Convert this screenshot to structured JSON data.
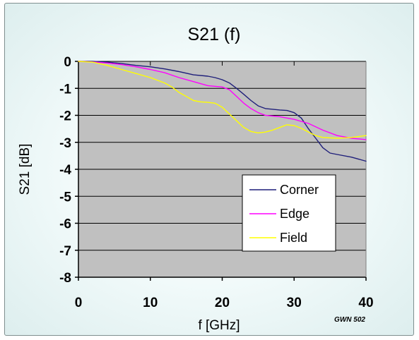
{
  "chart_data": {
    "type": "line",
    "title": "S21 (f)",
    "xlabel": "f [GHz]",
    "ylabel": "S21 [dB]",
    "xlim": [
      0,
      40
    ],
    "ylim": [
      -8,
      0
    ],
    "x_ticks": [
      "0",
      "10",
      "20",
      "30",
      "40"
    ],
    "y_ticks": [
      "0",
      "-1",
      "-2",
      "-3",
      "-4",
      "-5",
      "-6",
      "-7",
      "-8"
    ],
    "grid": "horizontal",
    "legend": "bottom-right",
    "background": "#c0c0c0",
    "series": [
      {
        "name": "Corner",
        "color": "#1f1f7a",
        "points": [
          [
            0,
            0
          ],
          [
            2,
            0
          ],
          [
            4,
            -0.03
          ],
          [
            6,
            -0.08
          ],
          [
            8,
            -0.15
          ],
          [
            10,
            -0.2
          ],
          [
            12,
            -0.28
          ],
          [
            14,
            -0.38
          ],
          [
            16,
            -0.5
          ],
          [
            18,
            -0.55
          ],
          [
            19,
            -0.6
          ],
          [
            20,
            -0.68
          ],
          [
            21,
            -0.8
          ],
          [
            22,
            -1.0
          ],
          [
            23,
            -1.22
          ],
          [
            24,
            -1.45
          ],
          [
            25,
            -1.65
          ],
          [
            26,
            -1.75
          ],
          [
            28,
            -1.8
          ],
          [
            29,
            -1.82
          ],
          [
            30,
            -1.9
          ],
          [
            31,
            -2.1
          ],
          [
            32,
            -2.5
          ],
          [
            33,
            -2.85
          ],
          [
            34,
            -3.2
          ],
          [
            35,
            -3.4
          ],
          [
            36,
            -3.45
          ],
          [
            38,
            -3.55
          ],
          [
            40,
            -3.7
          ]
        ]
      },
      {
        "name": "Edge",
        "color": "#ff00ff",
        "points": [
          [
            0,
            0
          ],
          [
            2,
            -0.02
          ],
          [
            4,
            -0.06
          ],
          [
            6,
            -0.12
          ],
          [
            8,
            -0.2
          ],
          [
            10,
            -0.3
          ],
          [
            12,
            -0.42
          ],
          [
            14,
            -0.6
          ],
          [
            16,
            -0.75
          ],
          [
            18,
            -0.9
          ],
          [
            20,
            -0.95
          ],
          [
            21,
            -1.05
          ],
          [
            22,
            -1.3
          ],
          [
            23,
            -1.55
          ],
          [
            24,
            -1.75
          ],
          [
            25,
            -1.9
          ],
          [
            26,
            -2.0
          ],
          [
            28,
            -2.05
          ],
          [
            30,
            -2.15
          ],
          [
            32,
            -2.3
          ],
          [
            34,
            -2.55
          ],
          [
            36,
            -2.75
          ],
          [
            38,
            -2.85
          ],
          [
            40,
            -2.9
          ]
        ]
      },
      {
        "name": "Field",
        "color": "#ffff00",
        "points": [
          [
            0,
            0
          ],
          [
            2,
            -0.03
          ],
          [
            4,
            -0.15
          ],
          [
            6,
            -0.3
          ],
          [
            8,
            -0.45
          ],
          [
            10,
            -0.6
          ],
          [
            12,
            -0.8
          ],
          [
            13,
            -0.95
          ],
          [
            14,
            -1.15
          ],
          [
            15,
            -1.3
          ],
          [
            16,
            -1.45
          ],
          [
            17,
            -1.5
          ],
          [
            18,
            -1.52
          ],
          [
            19,
            -1.55
          ],
          [
            20,
            -1.7
          ],
          [
            21,
            -1.95
          ],
          [
            22,
            -2.2
          ],
          [
            23,
            -2.45
          ],
          [
            24,
            -2.6
          ],
          [
            25,
            -2.65
          ],
          [
            26,
            -2.62
          ],
          [
            27,
            -2.55
          ],
          [
            28,
            -2.45
          ],
          [
            29,
            -2.35
          ],
          [
            30,
            -2.38
          ],
          [
            31,
            -2.48
          ],
          [
            32,
            -2.62
          ],
          [
            33,
            -2.75
          ],
          [
            34,
            -2.82
          ],
          [
            36,
            -2.85
          ],
          [
            38,
            -2.82
          ],
          [
            40,
            -2.75
          ]
        ]
      }
    ]
  },
  "footnote": "GWN 502"
}
